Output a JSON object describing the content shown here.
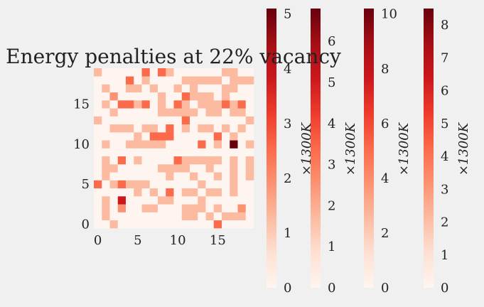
{
  "chart_data": {
    "type": "heatmap",
    "title": "Energy penalties at 22% vacancy",
    "xlim": [
      0,
      19
    ],
    "ylim": [
      0,
      19
    ],
    "x_ticks": [
      "0",
      "5",
      "10",
      "15"
    ],
    "y_ticks": [
      "0",
      "5",
      "10",
      "15"
    ],
    "palette": [
      "#fff5f0",
      "#fcbba1",
      "#fc9272",
      "#fb6a4a",
      "#ef3b2c",
      "#cb181d",
      "#67000d"
    ],
    "grid": [
      [
        0,
        0,
        1,
        0,
        0,
        0,
        0,
        0,
        0,
        0,
        0,
        0,
        0,
        0,
        0,
        3,
        0,
        0,
        0,
        0
      ],
      [
        0,
        1,
        0,
        0,
        0,
        0,
        0,
        0,
        0,
        0,
        0,
        1,
        1,
        0,
        1,
        0,
        1,
        1,
        1,
        0
      ],
      [
        0,
        1,
        0,
        2,
        0,
        0,
        1,
        1,
        0,
        0,
        0,
        1,
        1,
        1,
        0,
        1,
        0,
        0,
        2,
        0
      ],
      [
        0,
        1,
        0,
        5,
        0,
        0,
        0,
        0,
        1,
        1,
        0,
        0,
        0,
        1,
        0,
        0,
        0,
        0,
        0,
        0
      ],
      [
        0,
        0,
        0,
        0,
        0,
        1,
        0,
        1,
        0,
        3,
        0,
        1,
        1,
        0,
        1,
        1,
        0,
        1,
        0,
        0
      ],
      [
        3,
        0,
        1,
        3,
        1,
        1,
        1,
        0,
        0,
        0,
        0,
        0,
        0,
        1,
        0,
        0,
        0,
        1,
        0,
        0
      ],
      [
        0,
        1,
        0,
        0,
        0,
        0,
        0,
        0,
        0,
        1,
        0,
        0,
        1,
        0,
        0,
        1,
        0,
        1,
        0,
        1
      ],
      [
        0,
        1,
        1,
        0,
        0,
        0,
        0,
        0,
        1,
        1,
        1,
        1,
        0,
        0,
        1,
        0,
        0,
        1,
        0,
        1
      ],
      [
        0,
        1,
        0,
        3,
        0,
        1,
        0,
        0,
        0,
        0,
        3,
        1,
        1,
        1,
        1,
        1,
        0,
        1,
        0,
        1
      ],
      [
        0,
        0,
        0,
        0,
        0,
        0,
        0,
        0,
        0,
        0,
        0,
        0,
        0,
        0,
        0,
        0,
        0,
        0,
        0,
        0
      ],
      [
        0,
        1,
        0,
        0,
        1,
        1,
        1,
        1,
        1,
        0,
        0,
        0,
        0,
        3,
        0,
        1,
        0,
        6,
        0,
        1
      ],
      [
        0,
        0,
        0,
        0,
        0,
        1,
        0,
        3,
        3,
        3,
        0,
        0,
        0,
        0,
        0,
        3,
        0,
        1,
        0,
        0
      ],
      [
        0,
        0,
        1,
        1,
        1,
        0,
        1,
        1,
        0,
        3,
        0,
        1,
        0,
        1,
        1,
        0,
        1,
        0,
        1,
        0
      ],
      [
        1,
        0,
        0,
        0,
        0,
        0,
        0,
        0,
        0,
        0,
        0,
        3,
        0,
        0,
        0,
        0,
        0,
        0,
        0,
        1
      ],
      [
        0,
        0,
        1,
        0,
        0,
        0,
        0,
        0,
        1,
        1,
        1,
        1,
        1,
        0,
        1,
        1,
        0,
        1,
        1,
        0
      ],
      [
        0,
        1,
        0,
        3,
        3,
        1,
        3,
        0,
        1,
        0,
        3,
        1,
        0,
        1,
        1,
        1,
        3,
        1,
        3,
        0
      ],
      [
        0,
        0,
        2,
        0,
        0,
        0,
        0,
        0,
        1,
        0,
        0,
        3,
        1,
        1,
        1,
        0,
        1,
        0,
        0,
        0
      ],
      [
        0,
        1,
        0,
        0,
        1,
        1,
        0,
        1,
        0,
        0,
        1,
        0,
        1,
        0,
        0,
        0,
        1,
        1,
        0,
        0
      ],
      [
        0,
        0,
        0,
        0,
        3,
        0,
        1,
        0,
        0,
        0,
        0,
        1,
        1,
        1,
        1,
        1,
        0,
        1,
        1,
        1
      ],
      [
        1,
        0,
        0,
        0,
        0,
        0,
        3,
        0,
        3,
        1,
        0,
        0,
        0,
        0,
        0,
        0,
        1,
        1,
        0,
        0
      ]
    ],
    "colorbars": [
      {
        "max": 5.1,
        "ticks": [
          0,
          1,
          2,
          3,
          4,
          5
        ],
        "label": "×1300K"
      },
      {
        "max": 6.8,
        "ticks": [
          0,
          1,
          2,
          3,
          4,
          5,
          6
        ],
        "label": "×1300K"
      },
      {
        "max": 10.2,
        "ticks": [
          0,
          2,
          4,
          6,
          8,
          10
        ],
        "label": "×1300K"
      },
      {
        "max": 8.5,
        "ticks": [
          0,
          1,
          2,
          3,
          4,
          5,
          6,
          7,
          8
        ],
        "label": "×1300K"
      }
    ]
  }
}
